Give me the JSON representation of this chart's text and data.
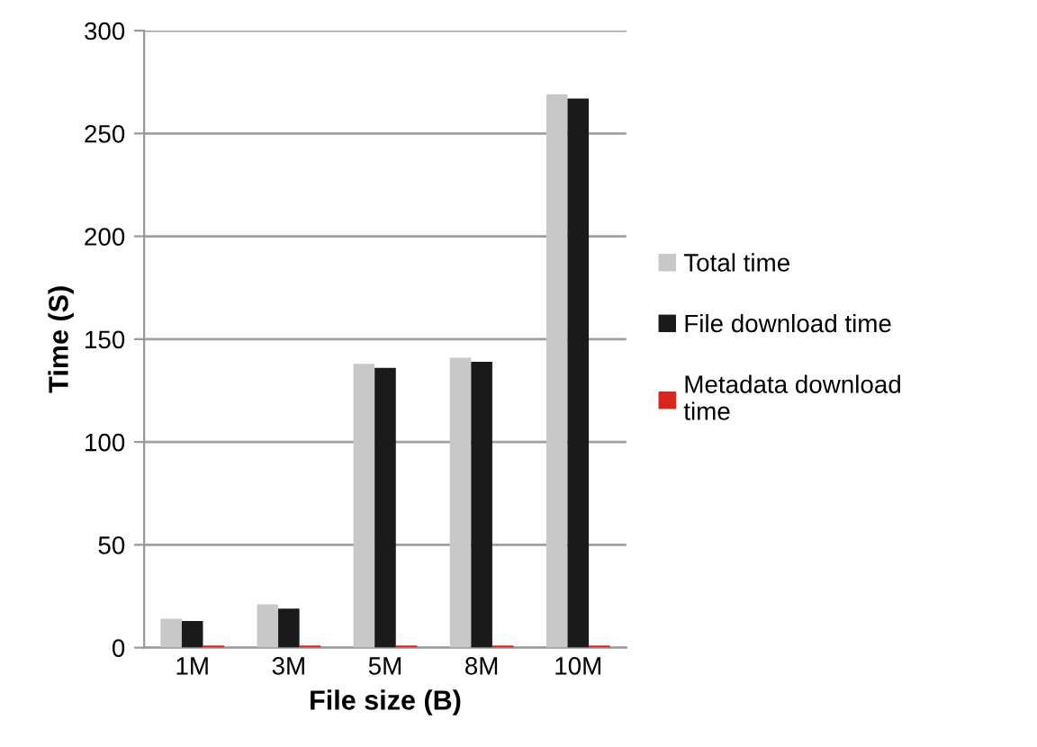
{
  "chart_data": {
    "type": "bar",
    "xlabel": "File size (B)",
    "ylabel": "Time (S)",
    "categories": [
      "1M",
      "3M",
      "5M",
      "8M",
      "10M"
    ],
    "series": [
      {
        "name": "Total time",
        "color": "#c8c8c8",
        "values": [
          14,
          21,
          138,
          141,
          269
        ]
      },
      {
        "name": "File download time",
        "color": "#1a1a1a",
        "values": [
          13,
          19,
          136,
          139,
          267
        ]
      },
      {
        "name": "Metadata download time",
        "color": "#d9251c",
        "values": [
          1,
          1,
          1,
          1,
          1
        ]
      }
    ],
    "ylim": [
      0,
      300
    ],
    "yticks": [
      0,
      50,
      100,
      150,
      200,
      250,
      300
    ],
    "grid": "y",
    "legend": "right"
  }
}
